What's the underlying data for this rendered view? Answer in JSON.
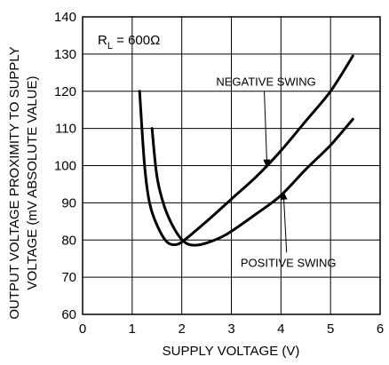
{
  "chart_data": {
    "type": "line",
    "title": "",
    "xlabel": "SUPPLY VOLTAGE (V)",
    "ylabel_lines": [
      "OUTPUT VOLTAGE PROXIMITY TO SUPPLY",
      "VOLTAGE (mV ABSOLUTE VALUE)"
    ],
    "xlim": [
      0,
      6
    ],
    "ylim": [
      60,
      140
    ],
    "x_ticks": [
      0,
      1,
      2,
      3,
      4,
      5,
      6
    ],
    "y_ticks": [
      60,
      70,
      80,
      90,
      100,
      110,
      120,
      130,
      140
    ],
    "grid": true,
    "condition_label": {
      "prefix": "R",
      "subscript": "L",
      "suffix": " = 600Ω"
    },
    "series": [
      {
        "name": "NEGATIVE SWING",
        "color": "#000000",
        "points": [
          [
            1.15,
            120
          ],
          [
            1.25,
            100
          ],
          [
            1.35,
            90
          ],
          [
            1.5,
            84
          ],
          [
            1.7,
            79.5
          ],
          [
            1.9,
            78.8
          ],
          [
            2.1,
            80.5
          ],
          [
            2.5,
            85
          ],
          [
            3.0,
            91
          ],
          [
            3.5,
            97
          ],
          [
            4.0,
            104
          ],
          [
            4.5,
            112
          ],
          [
            5.0,
            120
          ],
          [
            5.45,
            129.5
          ]
        ]
      },
      {
        "name": "POSITIVE SWING",
        "color": "#000000",
        "points": [
          [
            1.4,
            110
          ],
          [
            1.5,
            97
          ],
          [
            1.65,
            89
          ],
          [
            1.85,
            83
          ],
          [
            2.05,
            79.5
          ],
          [
            2.25,
            78.6
          ],
          [
            2.5,
            79.2
          ],
          [
            2.9,
            81.5
          ],
          [
            3.5,
            87
          ],
          [
            4.0,
            92
          ],
          [
            4.5,
            99
          ],
          [
            5.0,
            105.5
          ],
          [
            5.45,
            112.5
          ]
        ]
      }
    ],
    "annotations": [
      {
        "text": "NEGATIVE SWING",
        "text_at": [
          3.7,
          121.5
        ],
        "arrow_to": [
          3.72,
          99.5
        ]
      },
      {
        "text": "POSITIVE SWING",
        "text_at": [
          4.15,
          72.8
        ],
        "arrow_to": [
          4.05,
          93
        ]
      }
    ]
  }
}
